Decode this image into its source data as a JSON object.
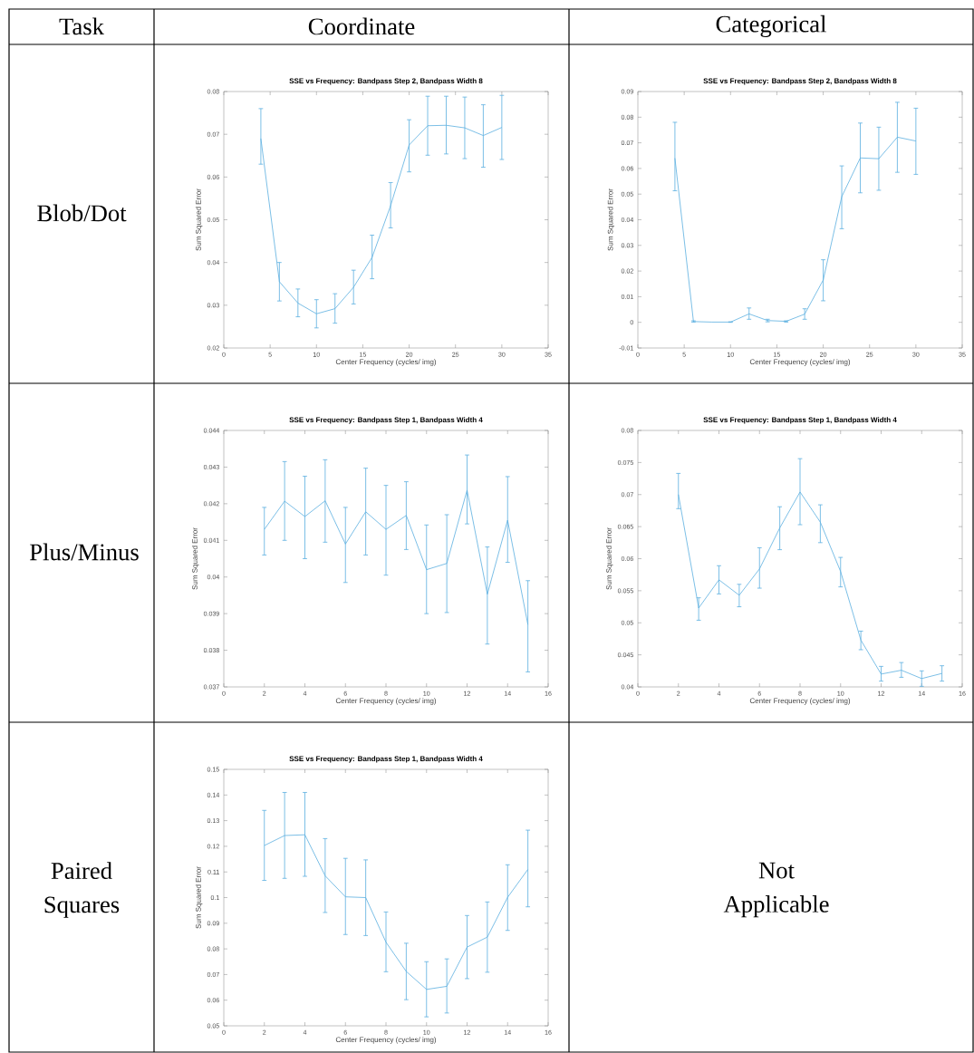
{
  "chart_data": [
    {
      "type": "other",
      "annotations": [
        "Task",
        "Coordinate",
        "Categorical",
        "Blob/Dot",
        "Plus/Minus",
        "Paired Squares",
        "Not Applicable"
      ]
    },
    {
      "type": "line",
      "title": "SSE vs Frequency: Bandpass Step 2, Bandpass Width 8",
      "xlabel": "Center Frequency (cycles/ img)",
      "ylabel": "Sum Squared Error",
      "color": "#5aaee0",
      "x": [
        4,
        6,
        8,
        10,
        12,
        14,
        16,
        18,
        20,
        22,
        24,
        26,
        28,
        30
      ],
      "values": [
        0.069,
        0.0355,
        0.0305,
        0.028,
        0.0292,
        0.0342,
        0.0412,
        0.0533,
        0.0675,
        0.072,
        0.0721,
        0.0715,
        0.0697,
        0.0716
      ],
      "errors": [
        [
          0.063,
          0.076
        ],
        [
          0.031,
          0.04
        ],
        [
          0.0273,
          0.0338
        ],
        [
          0.0247,
          0.0313
        ],
        [
          0.0258,
          0.0327
        ],
        [
          0.0303,
          0.0382
        ],
        [
          0.0362,
          0.0464
        ],
        [
          0.0481,
          0.0587
        ],
        [
          0.0612,
          0.0734
        ],
        [
          0.0651,
          0.0789
        ],
        [
          0.0654,
          0.0789
        ],
        [
          0.0643,
          0.0787
        ],
        [
          0.0623,
          0.0769
        ],
        [
          0.0641,
          0.0791
        ]
      ],
      "xlim": [
        0,
        35
      ],
      "ylim": [
        0.02,
        0.08
      ],
      "xticks": [
        0,
        5,
        10,
        15,
        20,
        25,
        30,
        35
      ],
      "yticks": [
        0.02,
        0.03,
        0.04,
        0.05,
        0.06,
        0.07,
        0.08
      ]
    },
    {
      "type": "line",
      "title": "SSE vs Frequency: Bandpass Step 2, Bandpass Width 8",
      "xlabel": "Center Frequency (cycles/ img)",
      "ylabel": "Sum Squared Error",
      "color": "#5aaee0",
      "x": [
        4,
        6,
        8,
        10,
        12,
        14,
        16,
        18,
        20,
        22,
        24,
        26,
        28,
        30
      ],
      "values": [
        0.064,
        0.0003,
        0.0001,
        0.0001,
        0.0033,
        0.0007,
        0.0004,
        0.0032,
        0.0165,
        0.049,
        0.0641,
        0.0638,
        0.0722,
        0.0707
      ],
      "errors": [
        [
          0.0513,
          0.078
        ],
        [
          0.0001,
          0.0006
        ],
        null,
        [
          0.0,
          0.0002
        ],
        [
          0.0012,
          0.0056
        ],
        [
          0.0002,
          0.0012
        ],
        [
          0.0001,
          0.0006
        ],
        [
          0.0012,
          0.0053
        ],
        [
          0.0084,
          0.0244
        ],
        [
          0.0365,
          0.061
        ],
        [
          0.0505,
          0.0777
        ],
        [
          0.0515,
          0.0761
        ],
        [
          0.0585,
          0.0858
        ],
        [
          0.0577,
          0.0835
        ]
      ],
      "xlim": [
        0,
        35
      ],
      "ylim": [
        -0.01,
        0.09
      ],
      "xticks": [
        0,
        5,
        10,
        15,
        20,
        25,
        30,
        35
      ],
      "yticks": [
        -0.01,
        0,
        0.01,
        0.02,
        0.03,
        0.04,
        0.05,
        0.06,
        0.07,
        0.08,
        0.09
      ]
    },
    {
      "type": "line",
      "title": "SSE vs Frequency: Bandpass Step 1, Bandpass Width 4",
      "xlabel": "Center Frequency (cycles/ img)",
      "ylabel": "Sum Squared Error",
      "color": "#5aaee0",
      "x": [
        2,
        3,
        4,
        5,
        6,
        7,
        8,
        9,
        10,
        11,
        12,
        13,
        14,
        15
      ],
      "values": [
        0.0413,
        0.04207,
        0.04165,
        0.04208,
        0.0409,
        0.04178,
        0.0413,
        0.04168,
        0.0402,
        0.04037,
        0.04237,
        0.03953,
        0.04155,
        0.0387
      ],
      "errors": [
        [
          0.0406,
          0.0419
        ],
        [
          0.041,
          0.04315
        ],
        [
          0.0405,
          0.04275
        ],
        [
          0.04095,
          0.0432
        ],
        [
          0.03985,
          0.0419
        ],
        [
          0.0406,
          0.04297
        ],
        [
          0.04005,
          0.0425
        ],
        [
          0.04075,
          0.0426
        ],
        [
          0.039,
          0.04142
        ],
        [
          0.03903,
          0.0417
        ],
        [
          0.04145,
          0.04333
        ],
        [
          0.03817,
          0.04082
        ],
        [
          0.0404,
          0.04274
        ],
        [
          0.03741,
          0.0399
        ]
      ],
      "xlim": [
        0,
        16
      ],
      "ylim": [
        0.037,
        0.044
      ],
      "xticks": [
        0,
        2,
        4,
        6,
        8,
        10,
        12,
        14,
        16
      ],
      "yticks": [
        0.037,
        0.038,
        0.039,
        0.04,
        0.041,
        0.042,
        0.043,
        0.044
      ]
    },
    {
      "type": "line",
      "title": "SSE vs Frequency: Bandpass Step 1, Bandpass Width 4",
      "xlabel": "Center Frequency (cycles/ img)",
      "ylabel": "Sum Squared Error",
      "color": "#5aaee0",
      "x": [
        2,
        3,
        4,
        5,
        6,
        7,
        8,
        9,
        10,
        11,
        12,
        13,
        14,
        15
      ],
      "values": [
        0.07,
        0.0523,
        0.0567,
        0.0543,
        0.0584,
        0.0648,
        0.0704,
        0.0657,
        0.058,
        0.0473,
        0.042,
        0.0426,
        0.0413,
        0.0421
      ],
      "errors": [
        [
          0.0678,
          0.0733
        ],
        [
          0.0504,
          0.0539
        ],
        [
          0.0545,
          0.0589
        ],
        [
          0.0525,
          0.056
        ],
        [
          0.0554,
          0.0617
        ],
        [
          0.0614,
          0.0681
        ],
        [
          0.0653,
          0.0756
        ],
        [
          0.0625,
          0.0684
        ],
        [
          0.0556,
          0.0602
        ],
        [
          0.0458,
          0.0487
        ],
        [
          0.0409,
          0.0432
        ],
        [
          0.0415,
          0.0438
        ],
        [
          0.0401,
          0.0425
        ],
        [
          0.0409,
          0.0433
        ]
      ],
      "xlim": [
        0,
        16
      ],
      "ylim": [
        0.04,
        0.08
      ],
      "xticks": [
        0,
        2,
        4,
        6,
        8,
        10,
        12,
        14,
        16
      ],
      "yticks": [
        0.04,
        0.045,
        0.05,
        0.055,
        0.06,
        0.065,
        0.07,
        0.075,
        0.08
      ]
    },
    {
      "type": "line",
      "title": "SSE vs Frequency: Bandpass Step 1, Bandpass Width 4",
      "xlabel": "Center Frequency (cycles/ img)",
      "ylabel": "Sum Squared Error",
      "color": "#5aaee0",
      "x": [
        2,
        3,
        4,
        5,
        6,
        7,
        8,
        9,
        10,
        11,
        12,
        13,
        14,
        15
      ],
      "values": [
        0.1203,
        0.1242,
        0.1245,
        0.1085,
        0.1003,
        0.1,
        0.0826,
        0.0712,
        0.0642,
        0.0654,
        0.0807,
        0.0846,
        0.1001,
        0.111
      ],
      "errors": [
        [
          0.1067,
          0.134
        ],
        [
          0.1075,
          0.141
        ],
        [
          0.1083,
          0.141
        ],
        [
          0.0942,
          0.123
        ],
        [
          0.0856,
          0.1153
        ],
        [
          0.0852,
          0.1147
        ],
        [
          0.0711,
          0.0944
        ],
        [
          0.0602,
          0.0822
        ],
        [
          0.0535,
          0.075
        ],
        [
          0.055,
          0.0761
        ],
        [
          0.0684,
          0.093
        ],
        [
          0.0709,
          0.0983
        ],
        [
          0.0872,
          0.1128
        ],
        [
          0.0964,
          0.1263
        ]
      ],
      "xlim": [
        0,
        16
      ],
      "ylim": [
        0.05,
        0.15
      ],
      "xticks": [
        0,
        2,
        4,
        6,
        8,
        10,
        12,
        14,
        16
      ],
      "yticks": [
        0.05,
        0.06,
        0.07,
        0.08,
        0.09,
        0.1,
        0.11,
        0.12,
        0.13,
        0.14,
        0.15
      ]
    }
  ]
}
